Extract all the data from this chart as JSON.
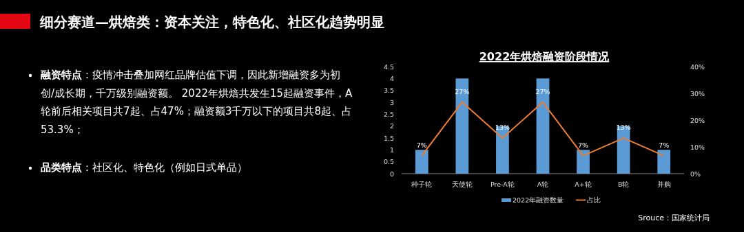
{
  "chart_data": {
    "type": "bar",
    "title": "2022年烘焙融资阶段情况",
    "annotations": [
      "细分赛道—烘焙类：资本关注，特色化、社区化趋势明显",
      "**融资特点**：疫情冲击叠加网红品牌估值下调，因此新增融资多为初创/成长期，千万级别融资额。 2022年烘焙共发生15起融资事件，A轮前后相关项目共7起、占47%；融资额3千万以下的项目共8起、占53.3%；",
      "**品类特点**：社区化、特色化（例如日式单品）",
      "Srouce：国家统计局"
    ],
    "categories": [
      "种子轮",
      "天使轮",
      "Pre-A轮",
      "A轮",
      "A+轮",
      "B轮",
      "并购"
    ],
    "series": [
      {
        "name": "2022年融资数量",
        "color": "#5b9bd5",
        "values": [
          1,
          4,
          2,
          4,
          1,
          2,
          1
        ]
      },
      {
        "name": "占比",
        "type": "line",
        "axis": "y2",
        "color": "#ed7d31",
        "values": [
          6.7,
          26.7,
          13.3,
          26.7,
          6.7,
          13.3,
          6.7
        ],
        "value_labels": [
          "7%",
          "27%",
          "13%",
          "27%",
          "7%",
          "13%",
          "7%"
        ]
      }
    ],
    "ylim": [
      0,
      4.5
    ],
    "yticks": [
      0,
      0.5,
      1,
      1.5,
      2,
      2.5,
      3,
      3.5,
      4,
      4.5
    ],
    "y2lim": [
      0,
      40
    ],
    "y2ticks": [
      {
        "value": 0,
        "label": "0%"
      },
      {
        "value": 10,
        "label": "10%"
      },
      {
        "value": 20,
        "label": "20%"
      },
      {
        "value": 30,
        "label": "30%"
      },
      {
        "value": 40,
        "label": "40%"
      }
    ],
    "legend": "bottom",
    "grid": false,
    "marker": "none"
  }
}
